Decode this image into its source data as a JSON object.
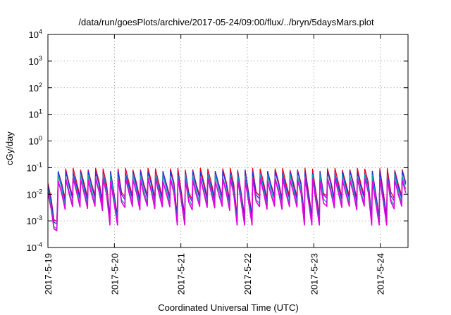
{
  "chart_data": {
    "type": "line",
    "title": "/data/run/goesPlots/archive/2017-05-24/09:00/flux/../bryn/5daysMars.plot",
    "xlabel": "Coordinated Universal Time (UTC)",
    "ylabel": "cGy/day",
    "yscale": "log",
    "ylim": [
      0.0001,
      10000
    ],
    "xlim": [
      "2017-05-19",
      "2017-05-24 10:00"
    ],
    "grid": true,
    "legend": "none",
    "x_ticks": [
      "2017-5-19",
      "2017-5-20",
      "2017-5-21",
      "2017-5-22",
      "2017-5-23",
      "2017-5-24"
    ],
    "y_ticks": [
      {
        "value": 0.0001,
        "base": "10",
        "exp": "-4"
      },
      {
        "value": 0.001,
        "base": "10",
        "exp": "-3"
      },
      {
        "value": 0.01,
        "base": "10",
        "exp": "-2"
      },
      {
        "value": 0.1,
        "base": "10",
        "exp": "-1"
      },
      {
        "value": 1,
        "base": "10",
        "exp": "0"
      },
      {
        "value": 10,
        "base": "10",
        "exp": "1"
      },
      {
        "value": 100,
        "base": "10",
        "exp": "2"
      },
      {
        "value": 1000,
        "base": "10",
        "exp": "3"
      },
      {
        "value": 10000,
        "base": "10",
        "exp": "4"
      }
    ],
    "series_colors": [
      "#e8001c",
      "#2a2ae0",
      "#10a0a8",
      "#e000e0"
    ],
    "cycle_hours": 2.7,
    "series": [
      {
        "color": "#e8001c",
        "peak": 0.095,
        "trough": 0.0075,
        "day_start_trough": 0.0011
      },
      {
        "color": "#2a2ae0",
        "peak": 0.075,
        "trough": 0.006,
        "day_start_trough": 0.0009
      },
      {
        "color": "#10a0a8",
        "peak": 0.055,
        "trough": 0.004,
        "day_start_trough": 0.0006
      },
      {
        "color": "#e000e0",
        "peak": 0.04,
        "trough": 0.003,
        "day_start_trough": 0.0005
      }
    ]
  }
}
